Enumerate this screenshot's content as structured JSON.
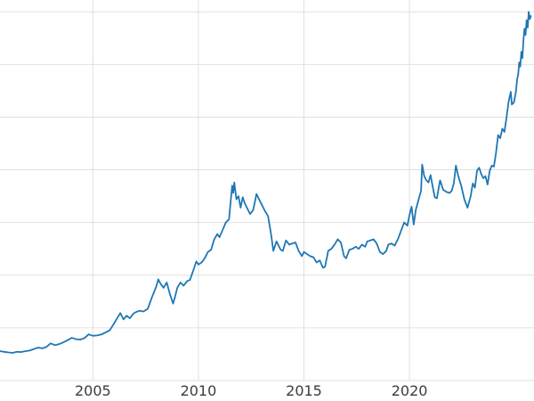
{
  "chart_data": {
    "type": "line",
    "title": "",
    "xlabel": "",
    "ylabel": "",
    "grid": true,
    "legend": false,
    "x_tick_labels": [
      "2005",
      "2010",
      "2015",
      "2020"
    ],
    "x_ticks": [
      2005,
      2010,
      2015,
      2020
    ],
    "x_range": [
      2000.6,
      2025.9
    ],
    "y_range": [
      -195,
      3612
    ],
    "y_gridlines": [
      0,
      500,
      1000,
      1500,
      2000,
      2500,
      3000,
      3500
    ],
    "series": [
      {
        "name": "price",
        "color": "#1f77b4",
        "x": [
          2000.6,
          2000.8,
          2001.0,
          2001.2,
          2001.4,
          2001.6,
          2001.8,
          2002.0,
          2002.2,
          2002.4,
          2002.6,
          2002.8,
          2003.0,
          2003.2,
          2003.4,
          2003.6,
          2003.8,
          2004.0,
          2004.2,
          2004.4,
          2004.6,
          2004.8,
          2005.0,
          2005.2,
          2005.4,
          2005.6,
          2005.8,
          2006.0,
          2006.15,
          2006.3,
          2006.45,
          2006.6,
          2006.75,
          2006.9,
          2007.0,
          2007.2,
          2007.4,
          2007.6,
          2007.8,
          2008.0,
          2008.1,
          2008.2,
          2008.35,
          2008.5,
          2008.65,
          2008.8,
          2008.9,
          2009.0,
          2009.15,
          2009.3,
          2009.45,
          2009.6,
          2009.75,
          2009.9,
          2010.0,
          2010.15,
          2010.3,
          2010.45,
          2010.6,
          2010.75,
          2010.9,
          2011.0,
          2011.15,
          2011.3,
          2011.45,
          2011.6,
          2011.65,
          2011.7,
          2011.8,
          2011.9,
          2012.0,
          2012.1,
          2012.2,
          2012.3,
          2012.45,
          2012.6,
          2012.75,
          2012.9,
          2013.0,
          2013.15,
          2013.3,
          2013.45,
          2013.55,
          2013.7,
          2013.8,
          2013.9,
          2014.0,
          2014.15,
          2014.3,
          2014.45,
          2014.6,
          2014.75,
          2014.9,
          2015.0,
          2015.15,
          2015.3,
          2015.45,
          2015.6,
          2015.75,
          2015.9,
          2016.0,
          2016.15,
          2016.3,
          2016.45,
          2016.6,
          2016.75,
          2016.9,
          2017.0,
          2017.15,
          2017.3,
          2017.45,
          2017.6,
          2017.75,
          2017.9,
          2018.0,
          2018.15,
          2018.3,
          2018.45,
          2018.6,
          2018.75,
          2018.9,
          2019.0,
          2019.15,
          2019.3,
          2019.45,
          2019.6,
          2019.75,
          2019.9,
          2020.0,
          2020.1,
          2020.2,
          2020.3,
          2020.45,
          2020.55,
          2020.6,
          2020.7,
          2020.8,
          2020.9,
          2021.0,
          2021.1,
          2021.2,
          2021.3,
          2021.45,
          2021.6,
          2021.75,
          2021.9,
          2022.0,
          2022.1,
          2022.2,
          2022.3,
          2022.45,
          2022.6,
          2022.75,
          2022.9,
          2023.0,
          2023.1,
          2023.2,
          2023.3,
          2023.4,
          2023.5,
          2023.6,
          2023.7,
          2023.8,
          2023.9,
          2024.0,
          2024.1,
          2024.2,
          2024.3,
          2024.4,
          2024.5,
          2024.6,
          2024.7,
          2024.8,
          2024.85,
          2024.95,
          2025.05,
          2025.1,
          2025.15,
          2025.2,
          2025.25,
          2025.3,
          2025.35,
          2025.4,
          2025.45,
          2025.5,
          2025.55,
          2025.6,
          2025.65,
          2025.7,
          2025.75
        ],
        "values": [
          278,
          272,
          266,
          262,
          272,
          270,
          278,
          284,
          298,
          312,
          305,
          318,
          352,
          335,
          345,
          362,
          382,
          405,
          392,
          388,
          402,
          438,
          424,
          428,
          436,
          456,
          476,
          540,
          590,
          640,
          580,
          615,
          590,
          630,
          645,
          662,
          655,
          680,
          790,
          890,
          960,
          920,
          880,
          930,
          820,
          730,
          800,
          880,
          930,
          900,
          940,
          955,
          1040,
          1130,
          1100,
          1120,
          1160,
          1220,
          1240,
          1340,
          1390,
          1360,
          1430,
          1500,
          1530,
          1850,
          1780,
          1880,
          1720,
          1750,
          1640,
          1740,
          1680,
          1640,
          1580,
          1620,
          1770,
          1710,
          1670,
          1610,
          1560,
          1380,
          1230,
          1320,
          1280,
          1240,
          1230,
          1330,
          1290,
          1300,
          1310,
          1230,
          1180,
          1220,
          1200,
          1180,
          1170,
          1120,
          1140,
          1070,
          1080,
          1230,
          1250,
          1290,
          1340,
          1310,
          1180,
          1160,
          1240,
          1250,
          1270,
          1250,
          1290,
          1270,
          1320,
          1330,
          1340,
          1300,
          1220,
          1200,
          1230,
          1290,
          1300,
          1280,
          1340,
          1420,
          1500,
          1470,
          1570,
          1650,
          1480,
          1620,
          1730,
          1800,
          2050,
          1940,
          1900,
          1880,
          1950,
          1840,
          1740,
          1730,
          1900,
          1810,
          1790,
          1780,
          1800,
          1870,
          2040,
          1950,
          1850,
          1720,
          1640,
          1750,
          1870,
          1830,
          1990,
          2020,
          1960,
          1920,
          1940,
          1860,
          1990,
          2040,
          2030,
          2160,
          2330,
          2300,
          2390,
          2360,
          2500,
          2650,
          2740,
          2620,
          2640,
          2750,
          2860,
          2900,
          3020,
          2980,
          3120,
          3060,
          3230,
          3340,
          3280,
          3420,
          3350,
          3500,
          3430,
          3460
        ]
      }
    ]
  },
  "styles": {
    "line_color": "#1f77b4",
    "grid_color": "#e0e0e0",
    "tick_label_color": "#3c3c3c",
    "background": "#ffffff"
  }
}
